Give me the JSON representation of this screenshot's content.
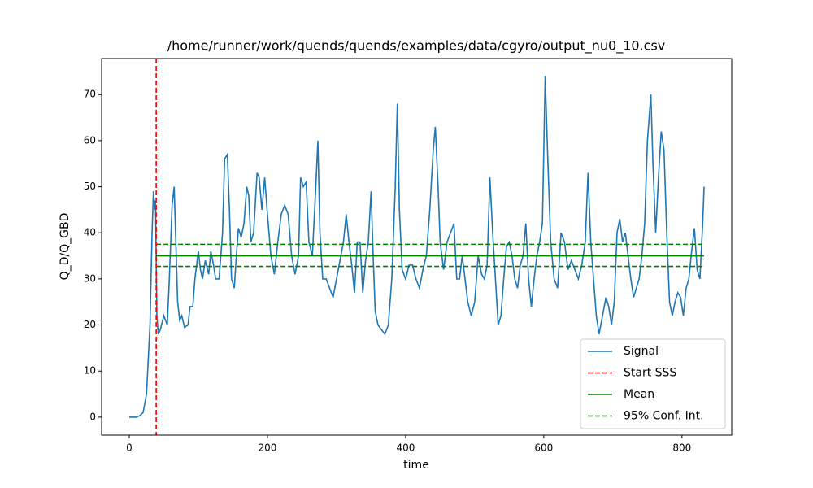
{
  "chart_data": {
    "type": "line",
    "title": "/home/runner/work/quends/quends/examples/data/cgyro/output_nu0_10.csv",
    "x_label": "time",
    "y_label": "Q_D/Q_GBD",
    "x": [
      0,
      5,
      10,
      15,
      20,
      25,
      30,
      33,
      35,
      37,
      38,
      40,
      42,
      45,
      50,
      55,
      58,
      62,
      65,
      68,
      70,
      73,
      76,
      80,
      85,
      88,
      92,
      95,
      100,
      103,
      106,
      110,
      115,
      118,
      122,
      125,
      130,
      135,
      138,
      142,
      145,
      148,
      152,
      155,
      158,
      162,
      166,
      170,
      173,
      176,
      180,
      185,
      188,
      192,
      196,
      200,
      205,
      210,
      215,
      220,
      225,
      230,
      235,
      240,
      245,
      248,
      252,
      256,
      260,
      265,
      270,
      273,
      276,
      280,
      285,
      290,
      295,
      300,
      305,
      310,
      314,
      318,
      322,
      326,
      330,
      334,
      338,
      342,
      346,
      350,
      353,
      356,
      360,
      365,
      370,
      375,
      380,
      385,
      388,
      391,
      395,
      400,
      405,
      410,
      415,
      420,
      425,
      430,
      435,
      440,
      443,
      447,
      450,
      455,
      460,
      465,
      470,
      474,
      478,
      482,
      486,
      490,
      495,
      500,
      505,
      510,
      514,
      518,
      522,
      526,
      530,
      534,
      538,
      542,
      546,
      550,
      554,
      558,
      562,
      566,
      570,
      574,
      578,
      582,
      586,
      590,
      594,
      598,
      602,
      606,
      610,
      615,
      620,
      625,
      630,
      635,
      640,
      645,
      650,
      655,
      660,
      664,
      668,
      672,
      676,
      680,
      685,
      690,
      694,
      698,
      702,
      706,
      710,
      714,
      718,
      722,
      726,
      730,
      734,
      738,
      742,
      746,
      750,
      755,
      758,
      762,
      766,
      770,
      774,
      778,
      782,
      786,
      790,
      794,
      798,
      802,
      806,
      810,
      814,
      818,
      822,
      826,
      830,
      832
    ],
    "series": [
      {
        "name": "Signal",
        "color": "#1f77b4",
        "values": [
          0,
          0,
          0,
          0.3,
          1,
          5,
          20,
          40,
          49,
          45,
          47,
          22,
          18,
          19,
          22,
          20,
          30,
          46,
          50,
          35,
          25,
          21,
          22,
          19.5,
          20,
          24,
          24,
          30,
          36,
          32,
          30,
          34,
          31,
          36,
          33,
          30,
          30,
          40,
          56,
          57,
          45,
          30,
          28,
          35,
          41,
          39,
          42,
          50,
          48,
          38,
          40,
          53,
          52,
          45,
          52,
          44,
          35,
          31,
          38,
          44,
          46,
          44,
          35,
          31,
          35,
          52,
          50,
          51,
          38,
          35,
          50,
          60,
          40,
          30,
          30,
          28,
          26,
          30,
          34,
          38,
          44,
          38,
          33,
          27,
          38,
          38,
          27,
          34,
          38,
          49,
          35,
          23,
          20,
          19,
          18,
          20,
          30,
          50,
          68,
          45,
          32,
          30,
          33,
          33,
          30,
          28,
          32,
          35,
          45,
          58,
          63,
          50,
          38,
          32,
          38,
          40,
          42,
          30,
          30,
          35,
          30,
          25,
          22,
          25,
          35,
          31,
          30,
          33,
          52,
          40,
          30,
          20,
          22,
          30,
          37,
          38,
          35,
          30,
          28,
          33,
          35,
          42,
          30,
          24,
          30,
          35,
          38,
          42,
          74,
          55,
          38,
          30,
          28,
          40,
          38,
          32,
          34,
          32,
          30,
          33,
          38,
          53,
          38,
          30,
          22,
          18,
          22,
          26,
          24,
          20,
          25,
          40,
          43,
          38,
          40,
          35,
          30,
          26,
          28,
          30,
          35,
          42,
          60,
          70,
          55,
          40,
          52,
          62,
          58,
          40,
          25,
          22,
          25,
          27,
          26,
          22,
          28,
          30,
          36,
          41,
          32,
          30,
          42,
          50
        ]
      }
    ],
    "vlines": [
      {
        "name": "Start SSS",
        "color": "#ff0000",
        "x": 39,
        "dashed": true
      }
    ],
    "hlines": [
      {
        "name": "Mean",
        "color": "#008000",
        "y": [
          35
        ],
        "xrange": [
          39,
          832
        ],
        "dashed": false
      },
      {
        "name": "95% Conf. Int.",
        "color": "#008000",
        "y": [
          32.7,
          37.5
        ],
        "xrange": [
          39,
          832
        ],
        "dashed": true
      }
    ],
    "xlim": [
      -40,
      872
    ],
    "ylim": [
      -3.9,
      77.8
    ],
    "xticks": [
      0,
      200,
      400,
      600,
      800
    ],
    "yticks": [
      0,
      10,
      20,
      30,
      40,
      50,
      60,
      70
    ],
    "grid": false,
    "legend": "lower right"
  }
}
